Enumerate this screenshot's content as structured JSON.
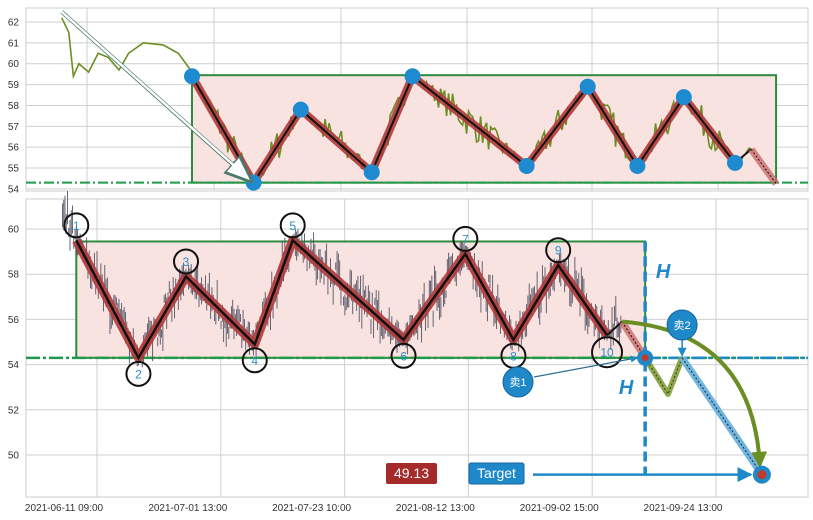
{
  "colors": {
    "price_line": "#6b8e23",
    "price_bars": "#555566",
    "pattern_line": "#b03a3a",
    "pivot_dot": "#1e8ad0",
    "box_fill": "#f9e3e0",
    "box_stroke": "#2e8b3e",
    "neckline": "#1f9a4a",
    "projection_blue": "#1e88c8",
    "projection_green": "#6b8e23",
    "target_badge": "#a52a2a"
  },
  "chart_data": [
    {
      "type": "line",
      "panel": "top",
      "ylim": [
        53.9,
        62.67
      ],
      "yticks": [
        "54",
        "55",
        "56",
        "57",
        "58",
        "59",
        "60",
        "61",
        "62"
      ],
      "grid": true,
      "history": [
        {
          "t": "2021-05-17 14:00",
          "p": 62.2
        },
        {
          "t": "2021-05-18 18:00",
          "p": 61.5
        },
        {
          "t": "2021-05-19 12:00",
          "p": 59.4
        },
        {
          "t": "2021-05-20 10:00",
          "p": 60.0
        },
        {
          "t": "2021-05-22 00:00",
          "p": 59.6
        },
        {
          "t": "2021-05-23 14:00",
          "p": 60.5
        },
        {
          "t": "2021-05-25 06:00",
          "p": 60.3
        },
        {
          "t": "2021-05-27 00:00",
          "p": 59.7
        },
        {
          "t": "2021-05-28 14:00",
          "p": 60.5
        },
        {
          "t": "2021-05-31 00:00",
          "p": 61.0
        },
        {
          "t": "2021-06-03 06:00",
          "p": 60.9
        },
        {
          "t": "2021-06-05 18:00",
          "p": 60.5
        },
        {
          "t": "2021-06-08 00:00",
          "p": 59.6
        }
      ],
      "pivots": [
        {
          "t": "2021-06-08 00:00",
          "p": 59.4
        },
        {
          "t": "2021-06-18 03:00",
          "p": 54.3
        },
        {
          "t": "2021-06-25 21:00",
          "p": 57.8
        },
        {
          "t": "2021-07-07 13:00",
          "p": 54.8
        },
        {
          "t": "2021-07-14 06:00",
          "p": 59.4
        },
        {
          "t": "2021-08-02 00:00",
          "p": 55.1
        },
        {
          "t": "2021-08-12 01:00",
          "p": 58.9
        },
        {
          "t": "2021-08-20 05:00",
          "p": 55.1
        },
        {
          "t": "2021-08-27 20:00",
          "p": 58.4
        },
        {
          "t": "2021-09-05 06:00",
          "p": 55.25
        }
      ],
      "last_swing": {
        "t": "2021-09-07 22:00",
        "p": 55.9
      },
      "breakout": {
        "t": "2021-09-12 00:00",
        "p": 54.25
      },
      "box": {
        "top": 59.45,
        "bottom": 54.3
      },
      "neckline": 54.3
    },
    {
      "type": "ohlc",
      "panel": "bottom",
      "ylim": [
        48.14,
        61.33
      ],
      "yticks": [
        "50",
        "52",
        "54",
        "56",
        "58",
        "60"
      ],
      "xticks": [
        "2021-06-11 09:00",
        "2021-07-01 13:00",
        "2021-07-23 10:00",
        "2021-08-12 13:00",
        "2021-09-02 15:00",
        "2021-09-24 13:00"
      ],
      "grid": true,
      "start": {
        "t": "2021-06-05 18:00",
        "p": 60.6
      },
      "pivots": [
        {
          "label": "1",
          "t": "2021-06-08 00:00",
          "p": 59.5
        },
        {
          "label": "2",
          "t": "2021-06-18 03:00",
          "p": 54.3
        },
        {
          "label": "3",
          "t": "2021-06-25 21:00",
          "p": 57.9
        },
        {
          "label": "4",
          "t": "2021-07-07 13:00",
          "p": 54.9
        },
        {
          "label": "5",
          "t": "2021-07-14 06:00",
          "p": 59.5
        },
        {
          "label": "6",
          "t": "2021-08-02 00:00",
          "p": 55.1
        },
        {
          "label": "7",
          "t": "2021-08-12 01:00",
          "p": 58.9
        },
        {
          "label": "8",
          "t": "2021-08-20 05:00",
          "p": 55.1
        },
        {
          "label": "9",
          "t": "2021-08-27 20:00",
          "p": 58.4
        },
        {
          "label": "10",
          "t": "2021-09-05 06:00",
          "p": 55.3
        }
      ],
      "last_swing": {
        "t": "2021-09-07 22:00",
        "p": 55.9
      },
      "breakout": {
        "t": "2021-09-12 00:00",
        "p": 54.3
      },
      "pullback_low": {
        "t": "2021-09-16 01:00",
        "p": 52.7
      },
      "retest": {
        "t": "2021-09-18 13:00",
        "p": 54.3
      },
      "target": {
        "t": "2021-10-02 16:00",
        "p": 49.13
      },
      "box": {
        "top": 59.45,
        "bottom": 54.3
      },
      "neckline": 54.3,
      "annotations": {
        "height_label": "H",
        "sell1": "卖1",
        "sell2": "卖2",
        "target_label": "Target",
        "target_value": "49.13"
      }
    }
  ]
}
